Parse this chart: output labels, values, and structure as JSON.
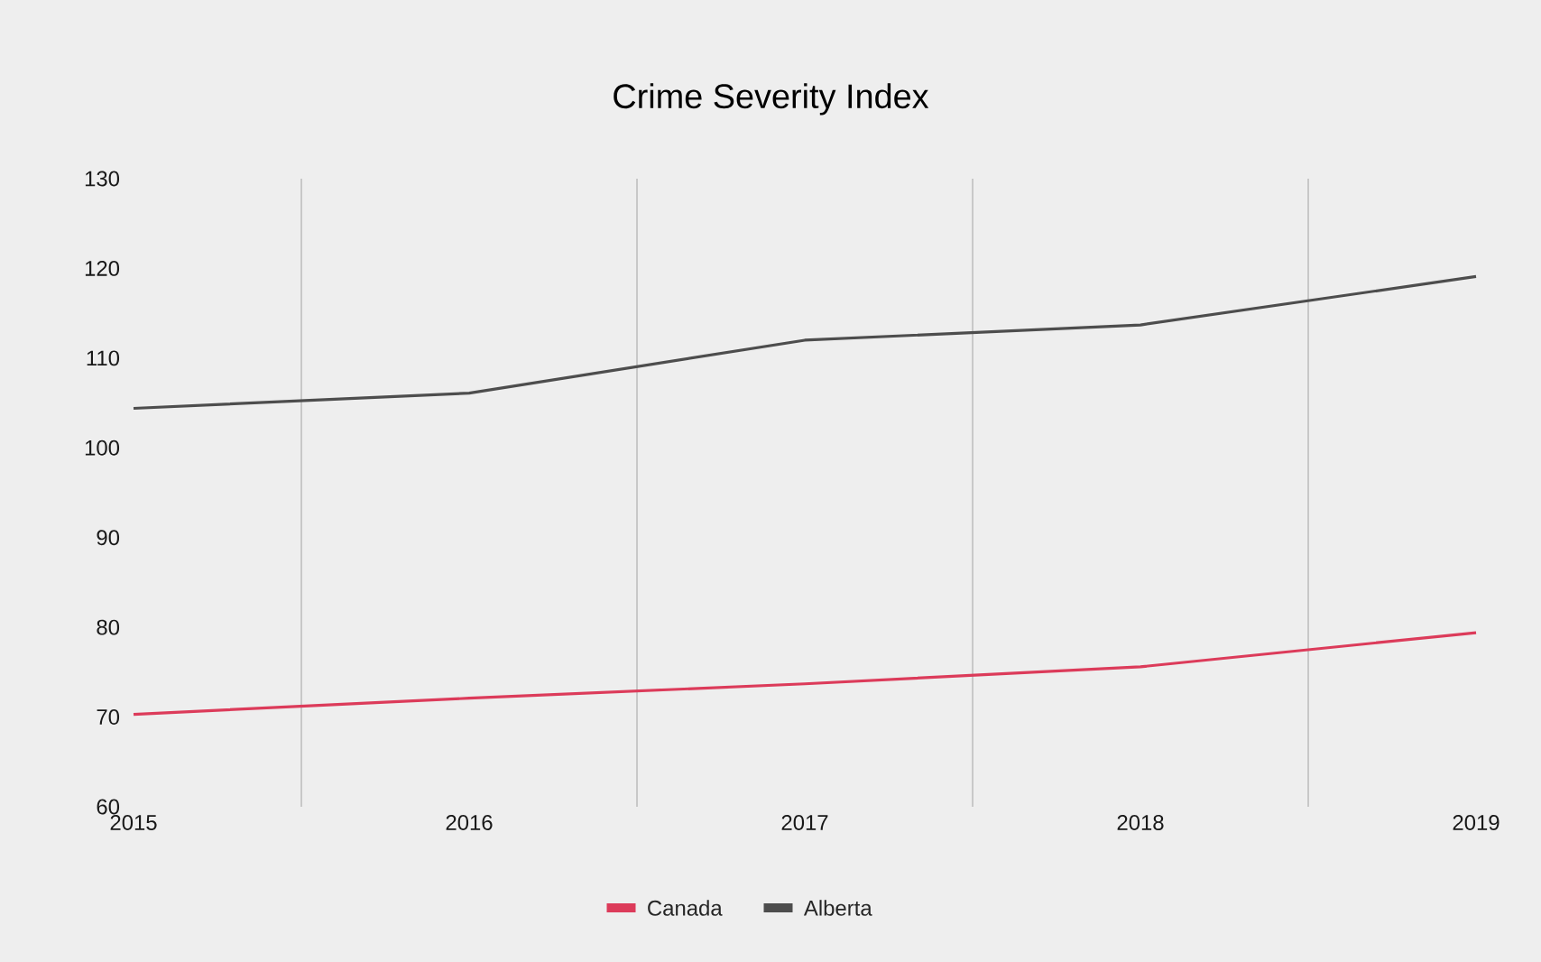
{
  "chart_data": {
    "type": "line",
    "title": "Crime Severity Index",
    "categories": [
      "2015",
      "2016",
      "2017",
      "2018",
      "2019"
    ],
    "series": [
      {
        "name": "Canada",
        "color": "#dc3b5a",
        "values": [
          70.3,
          72.1,
          73.7,
          75.6,
          79.4
        ]
      },
      {
        "name": "Alberta",
        "color": "#4d4d4d",
        "values": [
          104.4,
          106.1,
          112.0,
          113.7,
          119.1
        ]
      }
    ],
    "ylim": [
      60,
      130
    ],
    "yticks": [
      60,
      70,
      80,
      90,
      100,
      110,
      120,
      130
    ],
    "grid": "x",
    "legend": "bottom",
    "marker": "none",
    "line_style": "solid"
  }
}
